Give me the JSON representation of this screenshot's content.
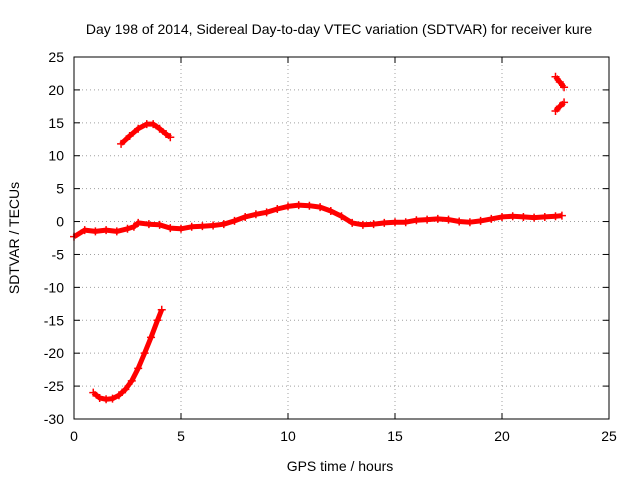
{
  "chart_data": {
    "type": "scatter",
    "title": "Day 198 of 2014, Sidereal Day-to-day VTEC variation (SDTVAR) for receiver kure",
    "xlabel": "GPS time / hours",
    "ylabel": "SDTVAR / TECUs",
    "xlim": [
      0,
      25
    ],
    "ylim": [
      -30,
      25
    ],
    "xticks": [
      0,
      5,
      10,
      15,
      20,
      25
    ],
    "yticks": [
      -30,
      -25,
      -20,
      -15,
      -10,
      -5,
      0,
      5,
      10,
      15,
      20,
      25
    ],
    "xtick_labels": [
      "0",
      "5",
      "10",
      "15",
      "20",
      "25"
    ],
    "ytick_labels": [
      "-30",
      "-25",
      "-20",
      "-15",
      "-10",
      "-5",
      "0",
      "5",
      "10",
      "15",
      "20",
      "25"
    ],
    "grid": true,
    "series_color": "#ff0000",
    "series": [
      {
        "name": "main-trace",
        "points": [
          [
            0,
            -2.3
          ],
          [
            0.5,
            -1.3
          ],
          [
            1,
            -1.5
          ],
          [
            1.5,
            -1.3
          ],
          [
            2,
            -1.5
          ],
          [
            2.5,
            -1.1
          ],
          [
            2.8,
            -0.8
          ],
          [
            3,
            -0.2
          ],
          [
            3.5,
            -0.4
          ],
          [
            4,
            -0.5
          ],
          [
            4.5,
            -1.0
          ],
          [
            5,
            -1.1
          ],
          [
            5.5,
            -0.8
          ],
          [
            6,
            -0.7
          ],
          [
            6.5,
            -0.6
          ],
          [
            7,
            -0.4
          ],
          [
            7.5,
            0.1
          ],
          [
            8,
            0.7
          ],
          [
            8.5,
            1.1
          ],
          [
            9,
            1.4
          ],
          [
            9.5,
            1.9
          ],
          [
            10,
            2.3
          ],
          [
            10.5,
            2.5
          ],
          [
            11,
            2.4
          ],
          [
            11.5,
            2.2
          ],
          [
            12,
            1.6
          ],
          [
            12.5,
            0.8
          ],
          [
            13,
            -0.2
          ],
          [
            13.5,
            -0.5
          ],
          [
            14,
            -0.4
          ],
          [
            14.5,
            -0.2
          ],
          [
            15,
            -0.1
          ],
          [
            15.5,
            -0.1
          ],
          [
            16,
            0.2
          ],
          [
            16.5,
            0.3
          ],
          [
            17,
            0.4
          ],
          [
            17.5,
            0.3
          ],
          [
            18,
            0.0
          ],
          [
            18.5,
            -0.1
          ],
          [
            19,
            0.1
          ],
          [
            19.5,
            0.4
          ],
          [
            20,
            0.7
          ],
          [
            20.5,
            0.8
          ],
          [
            21,
            0.7
          ],
          [
            21.5,
            0.6
          ],
          [
            22,
            0.7
          ],
          [
            22.5,
            0.8
          ],
          [
            22.8,
            0.9
          ]
        ]
      },
      {
        "name": "upper-arc",
        "points": [
          [
            2.2,
            11.8
          ],
          [
            2.6,
            13.0
          ],
          [
            3.0,
            14.1
          ],
          [
            3.4,
            14.8
          ],
          [
            3.7,
            14.8
          ],
          [
            4.0,
            14.1
          ],
          [
            4.3,
            13.3
          ],
          [
            4.5,
            12.8
          ]
        ]
      },
      {
        "name": "lower-curve",
        "points": [
          [
            0.9,
            -26.0
          ],
          [
            1.2,
            -26.8
          ],
          [
            1.5,
            -27.0
          ],
          [
            1.8,
            -26.9
          ],
          [
            2.1,
            -26.4
          ],
          [
            2.4,
            -25.5
          ],
          [
            2.7,
            -24.2
          ],
          [
            3.0,
            -22.3
          ],
          [
            3.3,
            -20.0
          ],
          [
            3.6,
            -17.6
          ],
          [
            3.9,
            -15.0
          ],
          [
            4.1,
            -13.4
          ]
        ]
      },
      {
        "name": "top-right-upper",
        "points": [
          [
            22.5,
            22.0
          ],
          [
            22.7,
            21.2
          ],
          [
            22.9,
            20.4
          ]
        ]
      },
      {
        "name": "top-right-lower",
        "points": [
          [
            22.5,
            16.8
          ],
          [
            22.7,
            17.5
          ],
          [
            22.9,
            18.1
          ]
        ]
      }
    ]
  }
}
